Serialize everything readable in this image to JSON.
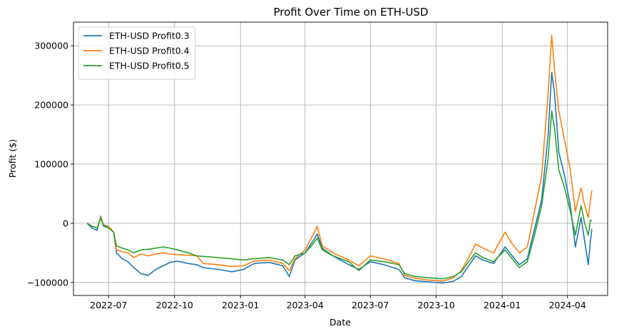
{
  "chart_data": {
    "type": "line",
    "title": "Profit Over Time on ETH-USD",
    "xlabel": "Date",
    "ylabel": "Profit ($)",
    "grid": true,
    "legend_position": "top-left",
    "xlim": [
      "2022-05-13",
      "2024-05-27"
    ],
    "ylim": [
      -122000,
      340000
    ],
    "x_ticks": [
      {
        "date": "2022-07-01",
        "label": "2022-07"
      },
      {
        "date": "2022-10-01",
        "label": "2022-10"
      },
      {
        "date": "2023-01-01",
        "label": "2023-01"
      },
      {
        "date": "2023-04-01",
        "label": "2023-04"
      },
      {
        "date": "2023-07-01",
        "label": "2023-07"
      },
      {
        "date": "2023-10-01",
        "label": "2023-10"
      },
      {
        "date": "2024-01-01",
        "label": "2024-01"
      },
      {
        "date": "2024-04-01",
        "label": "2024-04"
      }
    ],
    "y_ticks": [
      {
        "value": -100000,
        "label": "−100000"
      },
      {
        "value": 0,
        "label": "0"
      },
      {
        "value": 100000,
        "label": "100000"
      },
      {
        "value": 200000,
        "label": "200000"
      },
      {
        "value": 300000,
        "label": "300000"
      }
    ],
    "series": [
      {
        "name": "ETH-USD Profit0.3",
        "color": "#1f77b4",
        "points": [
          [
            "2022-06-01",
            0
          ],
          [
            "2022-06-08",
            -8000
          ],
          [
            "2022-06-15",
            -12000
          ],
          [
            "2022-06-20",
            12000
          ],
          [
            "2022-06-24",
            -5000
          ],
          [
            "2022-07-01",
            -8000
          ],
          [
            "2022-07-08",
            -15000
          ],
          [
            "2022-07-12",
            -50000
          ],
          [
            "2022-07-20",
            -60000
          ],
          [
            "2022-07-28",
            -65000
          ],
          [
            "2022-08-05",
            -75000
          ],
          [
            "2022-08-15",
            -85000
          ],
          [
            "2022-08-25",
            -88000
          ],
          [
            "2022-09-05",
            -78000
          ],
          [
            "2022-09-15",
            -72000
          ],
          [
            "2022-09-25",
            -66000
          ],
          [
            "2022-10-05",
            -64000
          ],
          [
            "2022-10-20",
            -68000
          ],
          [
            "2022-11-01",
            -70000
          ],
          [
            "2022-11-10",
            -75000
          ],
          [
            "2022-12-01",
            -78000
          ],
          [
            "2022-12-20",
            -82000
          ],
          [
            "2023-01-05",
            -78000
          ],
          [
            "2023-01-20",
            -68000
          ],
          [
            "2023-02-10",
            -66000
          ],
          [
            "2023-03-01",
            -72000
          ],
          [
            "2023-03-10",
            -90000
          ],
          [
            "2023-03-18",
            -62000
          ],
          [
            "2023-04-01",
            -50000
          ],
          [
            "2023-04-12",
            -30000
          ],
          [
            "2023-04-18",
            -18000
          ],
          [
            "2023-04-25",
            -42000
          ],
          [
            "2023-05-10",
            -55000
          ],
          [
            "2023-06-01",
            -70000
          ],
          [
            "2023-06-15",
            -78000
          ],
          [
            "2023-07-01",
            -65000
          ],
          [
            "2023-07-20",
            -70000
          ],
          [
            "2023-08-10",
            -78000
          ],
          [
            "2023-08-18",
            -92000
          ],
          [
            "2023-09-01",
            -97000
          ],
          [
            "2023-09-20",
            -99000
          ],
          [
            "2023-10-10",
            -101000
          ],
          [
            "2023-10-25",
            -98000
          ],
          [
            "2023-11-05",
            -90000
          ],
          [
            "2023-11-15",
            -72000
          ],
          [
            "2023-11-25",
            -55000
          ],
          [
            "2023-12-05",
            -62000
          ],
          [
            "2023-12-20",
            -68000
          ],
          [
            "2024-01-05",
            -40000
          ],
          [
            "2024-01-15",
            -55000
          ],
          [
            "2024-01-25",
            -70000
          ],
          [
            "2024-02-05",
            -60000
          ],
          [
            "2024-02-15",
            -10000
          ],
          [
            "2024-02-25",
            40000
          ],
          [
            "2024-03-05",
            150000
          ],
          [
            "2024-03-10",
            255000
          ],
          [
            "2024-03-14",
            220000
          ],
          [
            "2024-03-20",
            120000
          ],
          [
            "2024-03-28",
            80000
          ],
          [
            "2024-04-05",
            30000
          ],
          [
            "2024-04-12",
            -40000
          ],
          [
            "2024-04-20",
            10000
          ],
          [
            "2024-04-25",
            -30000
          ],
          [
            "2024-04-30",
            -70000
          ],
          [
            "2024-05-03",
            -30000
          ],
          [
            "2024-05-05",
            -10000
          ]
        ]
      },
      {
        "name": "ETH-USD Profit0.4",
        "color": "#ff7f0e",
        "points": [
          [
            "2022-06-01",
            0
          ],
          [
            "2022-06-08",
            -5000
          ],
          [
            "2022-06-15",
            -8000
          ],
          [
            "2022-06-20",
            10000
          ],
          [
            "2022-06-24",
            -3000
          ],
          [
            "2022-07-01",
            -5000
          ],
          [
            "2022-07-08",
            -15000
          ],
          [
            "2022-07-12",
            -45000
          ],
          [
            "2022-07-20",
            -48000
          ],
          [
            "2022-07-28",
            -50000
          ],
          [
            "2022-08-05",
            -58000
          ],
          [
            "2022-08-15",
            -52000
          ],
          [
            "2022-08-25",
            -55000
          ],
          [
            "2022-09-05",
            -52000
          ],
          [
            "2022-09-15",
            -50000
          ],
          [
            "2022-09-25",
            -52000
          ],
          [
            "2022-10-05",
            -53000
          ],
          [
            "2022-10-20",
            -54000
          ],
          [
            "2022-11-01",
            -55000
          ],
          [
            "2022-11-10",
            -68000
          ],
          [
            "2022-12-01",
            -70000
          ],
          [
            "2022-12-20",
            -73000
          ],
          [
            "2023-01-05",
            -72000
          ],
          [
            "2023-01-20",
            -64000
          ],
          [
            "2023-02-10",
            -62000
          ],
          [
            "2023-03-01",
            -68000
          ],
          [
            "2023-03-10",
            -80000
          ],
          [
            "2023-03-18",
            -60000
          ],
          [
            "2023-04-01",
            -45000
          ],
          [
            "2023-04-12",
            -20000
          ],
          [
            "2023-04-18",
            -5000
          ],
          [
            "2023-04-25",
            -38000
          ],
          [
            "2023-05-10",
            -50000
          ],
          [
            "2023-06-01",
            -62000
          ],
          [
            "2023-06-15",
            -72000
          ],
          [
            "2023-07-01",
            -55000
          ],
          [
            "2023-07-20",
            -60000
          ],
          [
            "2023-08-10",
            -68000
          ],
          [
            "2023-08-18",
            -88000
          ],
          [
            "2023-09-01",
            -93000
          ],
          [
            "2023-09-20",
            -96000
          ],
          [
            "2023-10-10",
            -98000
          ],
          [
            "2023-10-25",
            -92000
          ],
          [
            "2023-11-05",
            -80000
          ],
          [
            "2023-11-15",
            -58000
          ],
          [
            "2023-11-25",
            -35000
          ],
          [
            "2023-12-05",
            -42000
          ],
          [
            "2023-12-20",
            -50000
          ],
          [
            "2024-01-05",
            -15000
          ],
          [
            "2024-01-15",
            -35000
          ],
          [
            "2024-01-25",
            -50000
          ],
          [
            "2024-02-05",
            -40000
          ],
          [
            "2024-02-15",
            20000
          ],
          [
            "2024-02-25",
            80000
          ],
          [
            "2024-03-05",
            220000
          ],
          [
            "2024-03-10",
            318000
          ],
          [
            "2024-03-14",
            260000
          ],
          [
            "2024-03-20",
            190000
          ],
          [
            "2024-03-28",
            140000
          ],
          [
            "2024-04-05",
            90000
          ],
          [
            "2024-04-12",
            20000
          ],
          [
            "2024-04-20",
            60000
          ],
          [
            "2024-04-25",
            30000
          ],
          [
            "2024-04-30",
            10000
          ],
          [
            "2024-05-03",
            40000
          ],
          [
            "2024-05-05",
            55000
          ]
        ]
      },
      {
        "name": "ETH-USD Profit0.5",
        "color": "#2ca02c",
        "points": [
          [
            "2022-06-01",
            0
          ],
          [
            "2022-06-08",
            -5000
          ],
          [
            "2022-06-15",
            -8000
          ],
          [
            "2022-06-20",
            8000
          ],
          [
            "2022-06-24",
            -3000
          ],
          [
            "2022-07-01",
            -8000
          ],
          [
            "2022-07-08",
            -15000
          ],
          [
            "2022-07-12",
            -38000
          ],
          [
            "2022-07-20",
            -42000
          ],
          [
            "2022-07-28",
            -45000
          ],
          [
            "2022-08-05",
            -50000
          ],
          [
            "2022-08-15",
            -45000
          ],
          [
            "2022-08-25",
            -44000
          ],
          [
            "2022-09-05",
            -42000
          ],
          [
            "2022-09-15",
            -40000
          ],
          [
            "2022-09-25",
            -42000
          ],
          [
            "2022-10-05",
            -45000
          ],
          [
            "2022-10-20",
            -50000
          ],
          [
            "2022-11-01",
            -55000
          ],
          [
            "2022-11-10",
            -56000
          ],
          [
            "2022-12-01",
            -58000
          ],
          [
            "2022-12-20",
            -60000
          ],
          [
            "2023-01-05",
            -62000
          ],
          [
            "2023-01-20",
            -60000
          ],
          [
            "2023-02-10",
            -58000
          ],
          [
            "2023-03-01",
            -62000
          ],
          [
            "2023-03-10",
            -70000
          ],
          [
            "2023-03-18",
            -55000
          ],
          [
            "2023-04-01",
            -50000
          ],
          [
            "2023-04-12",
            -35000
          ],
          [
            "2023-04-18",
            -25000
          ],
          [
            "2023-04-25",
            -45000
          ],
          [
            "2023-05-10",
            -55000
          ],
          [
            "2023-06-01",
            -65000
          ],
          [
            "2023-06-15",
            -80000
          ],
          [
            "2023-07-01",
            -62000
          ],
          [
            "2023-07-20",
            -65000
          ],
          [
            "2023-08-10",
            -70000
          ],
          [
            "2023-08-18",
            -85000
          ],
          [
            "2023-09-01",
            -90000
          ],
          [
            "2023-09-20",
            -92000
          ],
          [
            "2023-10-10",
            -94000
          ],
          [
            "2023-10-25",
            -90000
          ],
          [
            "2023-11-05",
            -82000
          ],
          [
            "2023-11-15",
            -65000
          ],
          [
            "2023-11-25",
            -50000
          ],
          [
            "2023-12-05",
            -58000
          ],
          [
            "2023-12-20",
            -65000
          ],
          [
            "2024-01-05",
            -45000
          ],
          [
            "2024-01-15",
            -60000
          ],
          [
            "2024-01-25",
            -75000
          ],
          [
            "2024-02-05",
            -65000
          ],
          [
            "2024-02-15",
            -20000
          ],
          [
            "2024-02-25",
            30000
          ],
          [
            "2024-03-05",
            110000
          ],
          [
            "2024-03-10",
            190000
          ],
          [
            "2024-03-14",
            160000
          ],
          [
            "2024-03-20",
            90000
          ],
          [
            "2024-03-28",
            60000
          ],
          [
            "2024-04-05",
            20000
          ],
          [
            "2024-04-12",
            -20000
          ],
          [
            "2024-04-20",
            30000
          ],
          [
            "2024-04-25",
            0
          ],
          [
            "2024-04-30",
            -20000
          ],
          [
            "2024-05-03",
            5000
          ],
          [
            "2024-05-05",
            5000
          ]
        ]
      }
    ]
  }
}
